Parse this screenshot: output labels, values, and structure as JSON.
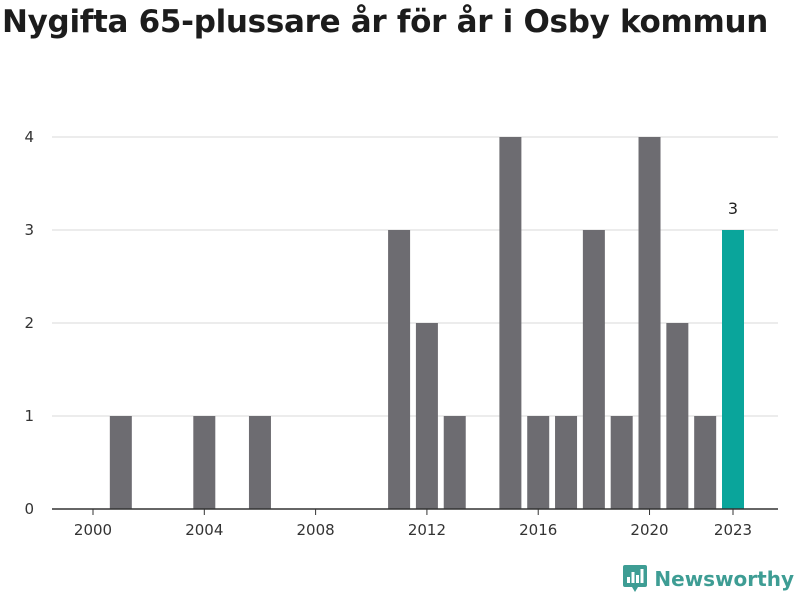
{
  "title": "Nygifta 65-plussare år för år i Osby kommun",
  "brand": "Newsworthy",
  "colors": {
    "bar": "#6d6c71",
    "highlight": "#0aa59b",
    "grid": "#d9d9d9",
    "axis": "#333333",
    "brand": "#3e9d94"
  },
  "chart_data": {
    "type": "bar",
    "title": "Nygifta 65-plussare år för år i Osby kommun",
    "xlabel": "",
    "ylabel": "",
    "x": [
      2000,
      2001,
      2002,
      2003,
      2004,
      2005,
      2006,
      2007,
      2008,
      2009,
      2010,
      2011,
      2012,
      2013,
      2014,
      2015,
      2016,
      2017,
      2018,
      2019,
      2020,
      2021,
      2022,
      2023
    ],
    "values": [
      0,
      1,
      0,
      0,
      1,
      0,
      1,
      0,
      0,
      0,
      0,
      3,
      2,
      1,
      0,
      4,
      1,
      1,
      3,
      1,
      4,
      2,
      1,
      3
    ],
    "highlight": 2023,
    "highlight_label": "3",
    "xticks": [
      "2000",
      "2004",
      "2008",
      "2012",
      "2016",
      "2020",
      "2023"
    ],
    "yticks": [
      "0",
      "1",
      "2",
      "3",
      "4"
    ],
    "ylim": [
      0,
      4
    ],
    "grid": true
  }
}
